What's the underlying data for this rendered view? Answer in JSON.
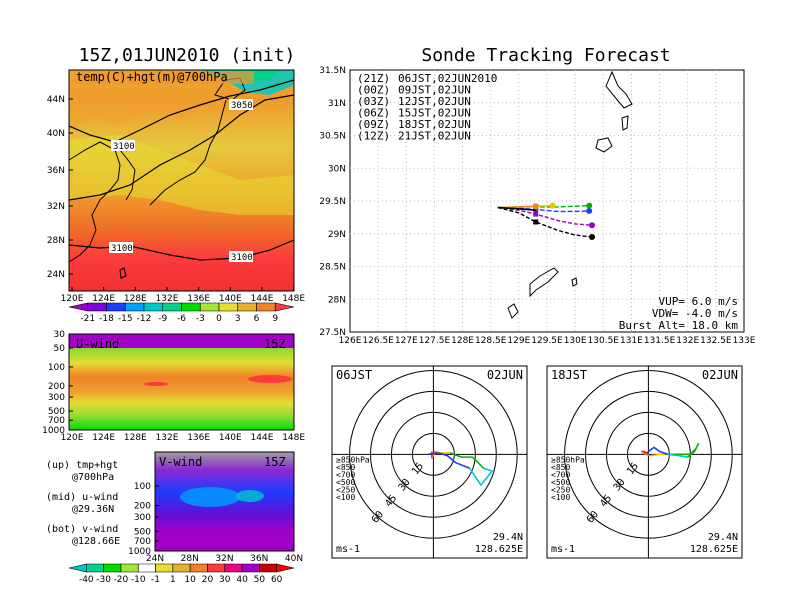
{
  "left": {
    "title": "15Z,01JUN2010 (init)",
    "map": {
      "label": "temp(C)+hgt(m)@700hPa",
      "lat_ticks": [
        "44N",
        "40N",
        "36N",
        "32N",
        "28N",
        "24N"
      ],
      "lon_ticks": [
        "120E",
        "124E",
        "128E",
        "132E",
        "136E",
        "140E",
        "144E",
        "148E"
      ],
      "contour_labels": [
        "3050",
        "3100",
        "3100",
        "3100"
      ]
    },
    "temp_colorbar": {
      "labels": [
        "-21",
        "-18",
        "-15",
        "-12",
        "-9",
        "-6",
        "-3",
        "0",
        "3",
        "6",
        "9"
      ],
      "colors": [
        "#a000c8",
        "#8200dc",
        "#1e3cff",
        "#00a0ff",
        "#00c8c8",
        "#00d28c",
        "#00dc00",
        "#a0e632",
        "#e6dc32",
        "#e6af2d",
        "#f08228",
        "#fa3c3c"
      ]
    },
    "uwind": {
      "label": "U-wind",
      "time": "15Z",
      "y_ticks": [
        "30",
        "50",
        "100",
        "200",
        "300",
        "500",
        "700",
        "1000"
      ],
      "x_ticks": [
        "120E",
        "124E",
        "128E",
        "132E",
        "136E",
        "140E",
        "144E",
        "148E"
      ]
    },
    "vwind": {
      "label": "V-wind",
      "time": "15Z",
      "y_ticks": [
        "100",
        "200",
        "300",
        "500",
        "700",
        "1000"
      ],
      "x_ticks": [
        "24N",
        "28N",
        "32N",
        "36N",
        "40N"
      ]
    },
    "notes": [
      {
        "a": "(up) tmp+hgt",
        "b": "@700hPa"
      },
      {
        "a": "(mid) u-wind",
        "b": "@29.36N"
      },
      {
        "a": "(bot) v-wind",
        "b": "@128.66E"
      }
    ],
    "wind_colorbar": {
      "labels": [
        "-40",
        "-30",
        "-20",
        "-10",
        "-1",
        "1",
        "10",
        "20",
        "30",
        "40",
        "50",
        "60"
      ],
      "colors": [
        "#00c8c8",
        "#00d28c",
        "#00dc00",
        "#a0e632",
        "#ffffff",
        "#e6dc32",
        "#e6af2d",
        "#f08228",
        "#fa3c3c",
        "#f00082",
        "#a000c8",
        "#c80000",
        "#ff0000"
      ]
    }
  },
  "tracking": {
    "title": "Sonde Tracking Forecast",
    "lat_ticks": [
      "31.5N",
      "31N",
      "30.5N",
      "30N",
      "29.5N",
      "29N",
      "28.5N",
      "28N",
      "27.5N"
    ],
    "lon_ticks": [
      "126E",
      "126.5E",
      "127E",
      "127.5E",
      "128E",
      "128.5E",
      "129E",
      "129.5E",
      "130E",
      "130.5E",
      "131E",
      "131.5E",
      "132E",
      "132.5E",
      "133E"
    ],
    "legend": [
      {
        "code": "(21Z)",
        "time": "06JST,02JUN2010",
        "color": "#000000"
      },
      {
        "code": "(00Z)",
        "time": "09JST,02JUN",
        "color": "#a000c8"
      },
      {
        "code": "(03Z)",
        "time": "12JST,02JUN",
        "color": "#1e3cff"
      },
      {
        "code": "(06Z)",
        "time": "15JST,02JUN",
        "color": "#00b400"
      },
      {
        "code": "(09Z)",
        "time": "18JST,02JUN",
        "color": "#e6c800"
      },
      {
        "code": "(12Z)",
        "time": "21JST,02JUN",
        "color": "#f08228"
      }
    ],
    "params": [
      "VUP= 6.0 m/s",
      "VDW= -4.0 m/s",
      "Burst Alt= 18.0 km"
    ]
  },
  "chart_data": [
    {
      "type": "line",
      "title": "Sonde Tracking Forecast",
      "xlim": [
        126,
        133
      ],
      "ylim": [
        27.5,
        31.5
      ],
      "start": [
        128.625,
        29.4
      ],
      "series": [
        {
          "name": "(21Z) 06JST,02JUN2010",
          "x": [
            128.625,
            129.0,
            129.3,
            129.7,
            130.0,
            130.3
          ],
          "y": [
            29.4,
            29.32,
            29.18,
            29.05,
            28.98,
            28.95
          ]
        },
        {
          "name": "(00Z) 09JST,02JUN",
          "x": [
            128.625,
            129.0,
            129.3,
            129.7,
            130.0,
            130.3
          ],
          "y": [
            29.4,
            29.36,
            29.3,
            29.2,
            29.15,
            29.13
          ]
        },
        {
          "name": "(03Z) 12JST,02JUN",
          "x": [
            128.625,
            129.0,
            129.3,
            129.7,
            130.0,
            130.25
          ],
          "y": [
            29.4,
            29.39,
            29.37,
            29.34,
            29.34,
            29.35
          ]
        },
        {
          "name": "(06Z) 15JST,02JUN",
          "x": [
            128.625,
            129.0,
            129.3,
            129.7,
            130.0,
            130.25
          ],
          "y": [
            29.4,
            29.41,
            29.41,
            29.41,
            29.42,
            29.43
          ]
        },
        {
          "name": "(09Z) 18JST,02JUN",
          "x": [
            128.625,
            129.0,
            129.3,
            129.6
          ],
          "y": [
            29.4,
            29.41,
            29.42,
            29.43
          ]
        },
        {
          "name": "(12Z) 21JST,02JUN",
          "x": [
            128.625,
            129.0,
            129.3
          ],
          "y": [
            29.4,
            29.41,
            29.42
          ]
        }
      ]
    },
    {
      "type": "scatter",
      "title": "06JST 02JUN",
      "ring_labels": [
        "15",
        "30",
        "45",
        "60"
      ],
      "unit": "ms-1",
      "location": [
        "29.4N",
        "128.625E"
      ],
      "level_legend": [
        {
          "label": "≥850hPa",
          "color": "#e60000"
        },
        {
          "label": "<850",
          "color": "#f08228"
        },
        {
          "label": "<700",
          "color": "#e6c800"
        },
        {
          "label": "<500",
          "color": "#00b400"
        },
        {
          "label": "<250",
          "color": "#00c8c8"
        },
        {
          "label": "<100",
          "color": "#1e3cff"
        }
      ],
      "segments": [
        {
          "color": "#e60000",
          "u": [
            0,
            -1,
            -1
          ],
          "v": [
            0,
            1,
            -3
          ]
        },
        {
          "color": "#f08228",
          "u": [
            -1,
            1,
            4
          ],
          "v": [
            -3,
            2,
            1
          ]
        },
        {
          "color": "#e6c800",
          "u": [
            4,
            8,
            12
          ],
          "v": [
            1,
            1,
            1
          ]
        },
        {
          "color": "#00b400",
          "u": [
            12,
            20,
            28,
            36
          ],
          "v": [
            1,
            -2,
            -2,
            -10
          ]
        },
        {
          "color": "#00c8c8",
          "u": [
            36,
            42,
            34,
            26
          ],
          "v": [
            -10,
            -12,
            -22,
            -10
          ]
        },
        {
          "color": "#1e3cff",
          "u": [
            26,
            16,
            10,
            4,
            -4
          ],
          "v": [
            -10,
            -6,
            -1,
            1,
            0
          ]
        }
      ]
    },
    {
      "type": "scatter",
      "title": "18JST 02JUN",
      "ring_labels": [
        "15",
        "30",
        "45",
        "60"
      ],
      "unit": "ms-1",
      "location": [
        "29.4N",
        "128.625E"
      ],
      "level_legend": [
        {
          "label": "≥850hPa",
          "color": "#e60000"
        },
        {
          "label": "<850",
          "color": "#f08228"
        },
        {
          "label": "<700",
          "color": "#e6c800"
        },
        {
          "label": "<500",
          "color": "#00b400"
        },
        {
          "label": "<250",
          "color": "#00c8c8"
        },
        {
          "label": "<100",
          "color": "#1e3cff"
        }
      ],
      "segments": [
        {
          "color": "#e60000",
          "u": [
            0,
            -3,
            -5
          ],
          "v": [
            0,
            2,
            2
          ]
        },
        {
          "color": "#f08228",
          "u": [
            -5,
            -2,
            2
          ],
          "v": [
            2,
            0,
            -1
          ]
        },
        {
          "color": "#e6c800",
          "u": [
            2,
            8,
            14
          ],
          "v": [
            -1,
            0,
            0
          ]
        },
        {
          "color": "#00b400",
          "u": [
            14,
            22,
            30,
            34,
            36,
            33,
            28
          ],
          "v": [
            0,
            0,
            0,
            4,
            8,
            2,
            -2
          ]
        },
        {
          "color": "#00c8c8",
          "u": [
            28,
            22,
            14
          ],
          "v": [
            -2,
            -1,
            0
          ]
        },
        {
          "color": "#1e3cff",
          "u": [
            14,
            8,
            4,
            0,
            -1
          ],
          "v": [
            0,
            2,
            5,
            2,
            0
          ]
        }
      ]
    }
  ],
  "hodo_left": {
    "date": "06JST",
    "day": "02JUN"
  },
  "hodo_right": {
    "date": "18JST",
    "day": "02JUN"
  }
}
